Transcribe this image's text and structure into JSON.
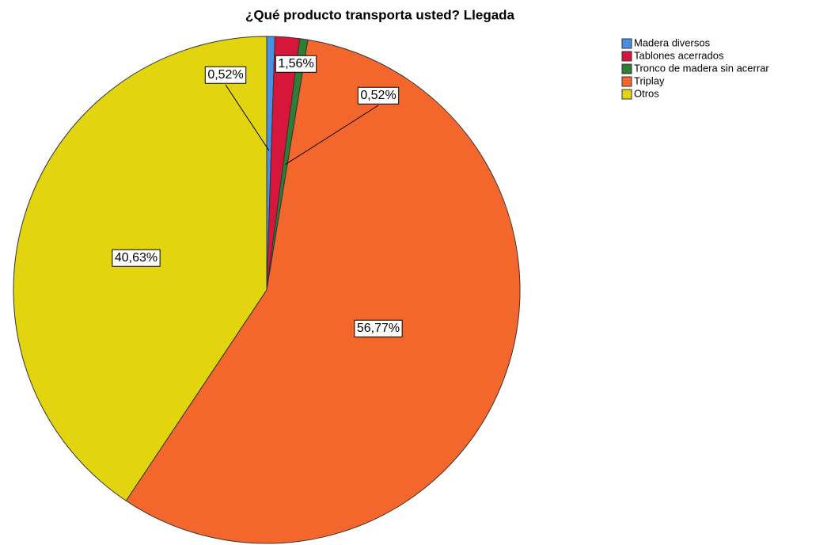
{
  "chart_data": {
    "type": "pie",
    "title": "¿Qué producto transporta usted? Llegada",
    "categories": [
      "Madera diversos",
      "Tablones acerrados",
      "Tronco de madera sin acerrar",
      "Triplay",
      "Otros"
    ],
    "values": [
      0.52,
      1.56,
      0.52,
      56.77,
      40.63
    ],
    "value_labels": [
      "0,52%",
      "1,56%",
      "0,52%",
      "56,77%",
      "40,63%"
    ],
    "colors": [
      "#4a90e2",
      "#d6163a",
      "#2e7d32",
      "#f4672c",
      "#e2d40f"
    ],
    "legend": "top-right"
  }
}
